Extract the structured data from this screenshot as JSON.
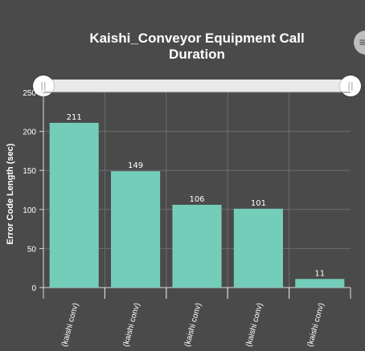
{
  "header": {
    "title_line1": "Kaishi_Conveyor Equipment Call",
    "title_line2": "Duration",
    "corner_button_glyph": "≡"
  },
  "range_slider": {
    "handle_glyph": "||"
  },
  "colors": {
    "bar": "#74cdb9",
    "background": "#4a4a4a",
    "grid": "#6e6e6e",
    "axis": "#dcdcdc"
  },
  "chart_data": {
    "type": "bar",
    "title": "Kaishi_Conveyor Equipment Call Duration",
    "ylabel": "Error Code Length (sec)",
    "xlabel": "",
    "ylim": [
      0,
      250
    ],
    "yticks": [
      0,
      50,
      100,
      150,
      200,
      250
    ],
    "categories": [
      "(kaishi conv)",
      "(kaishi conv)",
      "(kaishi conv)",
      "(kaishi conv)",
      "(kaishi conv)"
    ],
    "values": [
      211,
      149,
      106,
      101,
      11
    ],
    "data_labels": true,
    "grid": true
  }
}
